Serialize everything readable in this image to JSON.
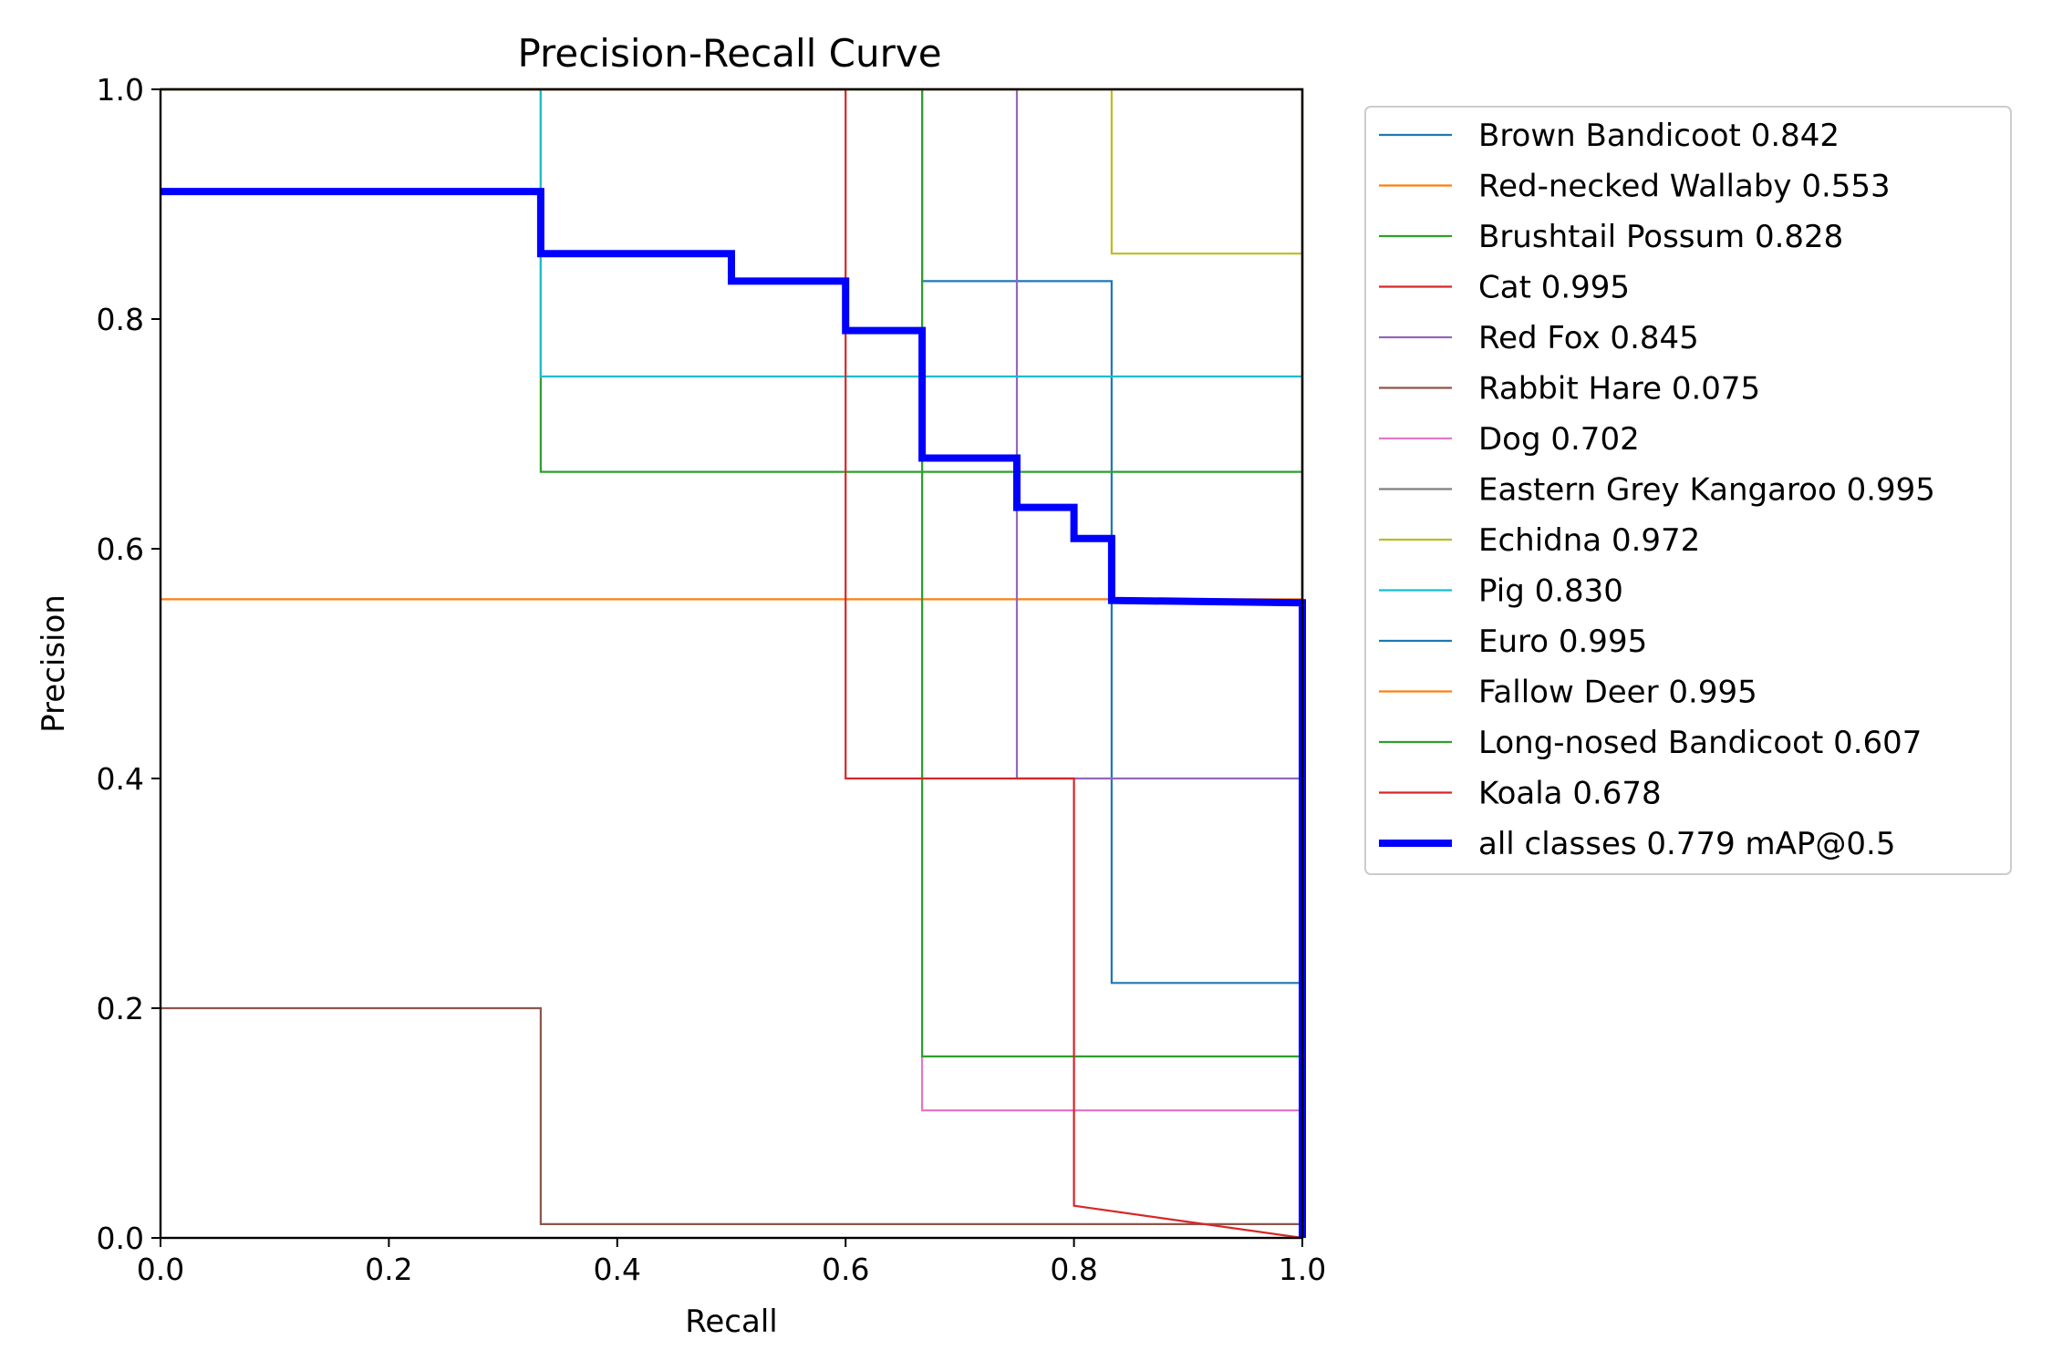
{
  "chart_data": {
    "type": "line",
    "title": "Precision-Recall Curve",
    "xlabel": "Recall",
    "ylabel": "Precision",
    "xlim": [
      0,
      1
    ],
    "ylim": [
      0,
      1
    ],
    "xticks": [
      "0.0",
      "0.2",
      "0.4",
      "0.6",
      "0.8",
      "1.0"
    ],
    "yticks": [
      "0.0",
      "0.2",
      "0.4",
      "0.6",
      "0.8",
      "1.0"
    ],
    "grid": false,
    "legend_position": "outside-right",
    "series": [
      {
        "name": "Brown Bandicoot 0.842",
        "color": "#1f77b4",
        "width": 2.2,
        "x": [
          0,
          0.667,
          0.667,
          0.833,
          0.833,
          1.0,
          1.0
        ],
        "y": [
          1.0,
          1.0,
          0.833,
          0.833,
          0.222,
          0.222,
          0.0
        ]
      },
      {
        "name": "Red-necked Wallaby 0.553",
        "color": "#ff7f0e",
        "width": 2.2,
        "x": [
          0,
          1.0,
          1.0
        ],
        "y": [
          0.556,
          0.556,
          0.0
        ]
      },
      {
        "name": "Brushtail Possum 0.828",
        "color": "#2ca02c",
        "width": 2.2,
        "x": [
          0,
          0.333,
          0.333,
          0.5,
          0.5,
          1.0,
          1.0
        ],
        "y": [
          1.0,
          1.0,
          0.667,
          0.667,
          0.667,
          0.667,
          0.0
        ]
      },
      {
        "name": "Cat 0.995",
        "color": "#d62728",
        "width": 2.2,
        "x": [
          0,
          1.0,
          1.0
        ],
        "y": [
          1.0,
          1.0,
          0.0
        ]
      },
      {
        "name": "Red Fox 0.845",
        "color": "#9467bd",
        "width": 2.2,
        "x": [
          0,
          0.75,
          0.75,
          1.0,
          1.0
        ],
        "y": [
          1.0,
          1.0,
          0.4,
          0.4,
          0.0
        ]
      },
      {
        "name": "Rabbit Hare 0.075",
        "color": "#8c564b",
        "width": 2.2,
        "x": [
          0,
          0.333,
          0.333,
          1.0,
          1.0
        ],
        "y": [
          0.2,
          0.2,
          0.012,
          0.012,
          0.0
        ]
      },
      {
        "name": "Dog 0.702",
        "color": "#e377c2",
        "width": 2.2,
        "x": [
          0,
          0.667,
          0.667,
          1.0,
          1.0
        ],
        "y": [
          1.0,
          1.0,
          0.111,
          0.111,
          0.0
        ]
      },
      {
        "name": "Eastern Grey Kangaroo 0.995",
        "color": "#7f7f7f",
        "width": 2.2,
        "x": [
          0,
          1.0,
          1.0
        ],
        "y": [
          1.0,
          1.0,
          0.0
        ]
      },
      {
        "name": "Echidna 0.972",
        "color": "#bcbd22",
        "width": 2.2,
        "x": [
          0,
          0.833,
          0.833,
          1.0,
          1.0
        ],
        "y": [
          1.0,
          1.0,
          0.857,
          0.857,
          0.0
        ]
      },
      {
        "name": "Pig 0.830",
        "color": "#17becf",
        "width": 2.2,
        "x": [
          0,
          0.333,
          0.333,
          1.0,
          1.0
        ],
        "y": [
          1.0,
          1.0,
          0.75,
          0.75,
          0.0
        ]
      },
      {
        "name": "Euro 0.995",
        "color": "#1f77b4",
        "width": 2.2,
        "x": [
          0,
          1.0,
          1.0
        ],
        "y": [
          1.0,
          1.0,
          0.0
        ]
      },
      {
        "name": "Fallow Deer 0.995",
        "color": "#ff7f0e",
        "width": 2.2,
        "x": [
          0,
          1.0,
          1.0
        ],
        "y": [
          1.0,
          1.0,
          0.0
        ]
      },
      {
        "name": "Long-nosed Bandicoot 0.607",
        "color": "#2ca02c",
        "width": 2.2,
        "x": [
          0,
          0.667,
          0.667,
          1.0,
          1.0
        ],
        "y": [
          1.0,
          1.0,
          0.158,
          0.158,
          0.0
        ]
      },
      {
        "name": "Koala 0.678",
        "color": "#d62728",
        "width": 2.2,
        "x": [
          0,
          0.6,
          0.6,
          0.8,
          0.8,
          0.8,
          1.0
        ],
        "y": [
          1.0,
          1.0,
          0.4,
          0.4,
          0.4,
          0.028,
          0.0
        ]
      },
      {
        "name": "all classes 0.779 mAP@0.5",
        "color": "#0000ff",
        "width": 8,
        "x": [
          0,
          0.333,
          0.333,
          0.5,
          0.5,
          0.6,
          0.6,
          0.667,
          0.667,
          0.75,
          0.75,
          0.8,
          0.8,
          0.833,
          0.833,
          1.0,
          1.0
        ],
        "y": [
          0.911,
          0.911,
          0.857,
          0.857,
          0.833,
          0.833,
          0.79,
          0.79,
          0.679,
          0.679,
          0.636,
          0.636,
          0.609,
          0.609,
          0.555,
          0.553,
          0.0
        ]
      }
    ]
  }
}
